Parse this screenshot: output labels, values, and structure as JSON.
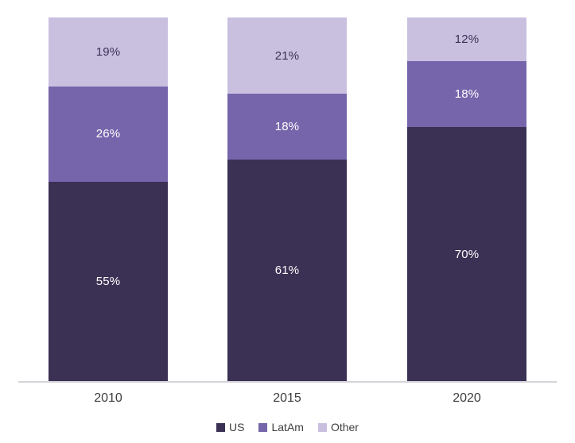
{
  "chart_data": {
    "type": "bar",
    "stacked": true,
    "percent_stacked": true,
    "title": "",
    "xlabel": "",
    "ylabel": "",
    "categories": [
      "2010",
      "2015",
      "2020"
    ],
    "series": [
      {
        "name": "US",
        "color": "#3b3154",
        "label_color": "#ffffff",
        "values": [
          55,
          61,
          70
        ]
      },
      {
        "name": "LatAm",
        "color": "#7665ab",
        "label_color": "#ffffff",
        "values": [
          26,
          18,
          18
        ]
      },
      {
        "name": "Other",
        "color": "#c9c0e0",
        "label_color": "#3b3154",
        "values": [
          19,
          21,
          12
        ]
      }
    ],
    "value_suffix": "%",
    "data_labels": [
      "55%",
      "61%",
      "70%",
      "26%",
      "18%",
      "18%",
      "19%",
      "21%",
      "12%"
    ],
    "ylim": [
      0,
      100
    ],
    "grid": false,
    "y_axis_visible": false,
    "legend_position": "bottom",
    "axis_line_color": "#d6d3d9",
    "x_tick_color": "#3f3f3f"
  }
}
